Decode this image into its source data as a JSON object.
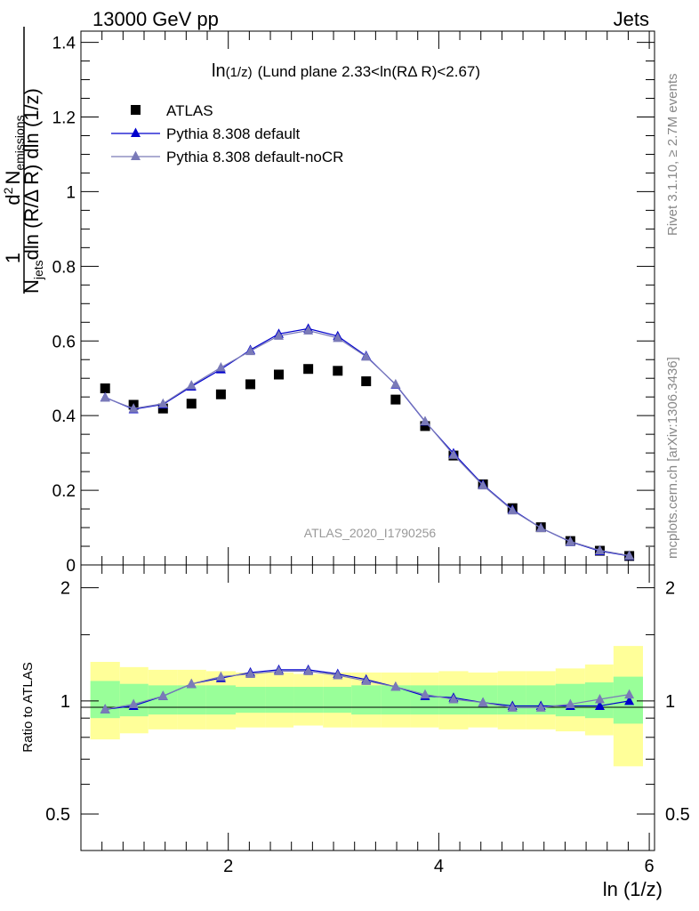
{
  "header": {
    "left": "13000 GeV pp",
    "right": "Jets"
  },
  "side_labels": {
    "rivet": "Rivet 3.1.10, ≥ 2.7M events",
    "mcplots": "mcplots.cern.ch [arXiv:1306.3436]"
  },
  "watermark": "ATLAS_2020_I1790256",
  "chart_data": [
    {
      "type": "scatter",
      "title_main": "ln",
      "title_sub": "(1/z)",
      "title_rest": "(Lund plane 2.33<ln(RΔ R)<2.67)",
      "xlabel": "ln (1/z)",
      "ylabel": {
        "numerator": "1",
        "denominator": "N",
        "denominator_sub": "jets",
        "d_label": "d",
        "d_sup": "2",
        "n_label": "N",
        "n_sub": "emissions",
        "tail": "dln (R/Δ R) dln (1/z)"
      },
      "xlim": [
        0.6,
        6.05
      ],
      "ylim": [
        0,
        1.43
      ],
      "y_ticks": [
        "0",
        "0.2",
        "0.4",
        "0.6",
        "0.8",
        "1",
        "1.2",
        "1.4"
      ],
      "x_ticks": [
        "2",
        "4",
        "6"
      ],
      "legend": [
        "ATLAS",
        "Pythia 8.308 default",
        "Pythia 8.308 default-noCR"
      ],
      "x": [
        0.83,
        1.1,
        1.38,
        1.65,
        1.93,
        2.21,
        2.48,
        2.76,
        3.04,
        3.31,
        3.59,
        3.87,
        4.14,
        4.42,
        4.7,
        4.97,
        5.25,
        5.53,
        5.81
      ],
      "series": [
        {
          "name": "ATLAS",
          "color": "#000000",
          "marker": "square",
          "values": [
            0.473,
            0.429,
            0.419,
            0.432,
            0.457,
            0.484,
            0.51,
            0.525,
            0.52,
            0.492,
            0.443,
            0.372,
            0.293,
            0.216,
            0.152,
            0.101,
            0.064,
            0.038,
            0.024
          ]
        },
        {
          "name": "Pythia 8.308 default",
          "color": "#0000cc",
          "marker": "triangle",
          "values": [
            0.449,
            0.417,
            0.43,
            0.478,
            0.524,
            0.576,
            0.619,
            0.633,
            0.613,
            0.56,
            0.483,
            0.384,
            0.299,
            0.215,
            0.148,
            0.099,
            0.062,
            0.037,
            0.024
          ]
        },
        {
          "name": "Pythia 8.308 default-noCR",
          "color": "#7a7ab8",
          "marker": "triangle",
          "values": [
            0.448,
            0.419,
            0.432,
            0.481,
            0.529,
            0.573,
            0.614,
            0.628,
            0.608,
            0.558,
            0.484,
            0.385,
            0.295,
            0.213,
            0.146,
            0.099,
            0.063,
            0.039,
            0.025
          ]
        }
      ]
    },
    {
      "type": "scatter",
      "ylabel": "Ratio to ATLAS",
      "ylim": [
        0.4,
        2.3
      ],
      "y_ticks": [
        "0.5",
        "1",
        "2"
      ],
      "yscale": "log",
      "bands": {
        "x_edges": [
          0.69,
          0.97,
          1.24,
          1.52,
          1.79,
          2.07,
          2.35,
          2.62,
          2.9,
          3.17,
          3.45,
          3.73,
          4.0,
          4.28,
          4.56,
          4.83,
          5.11,
          5.39,
          5.66,
          5.94
        ],
        "yellow_color": "#ffff99",
        "green_color": "#99ff99",
        "yellow_lo": [
          0.79,
          0.82,
          0.84,
          0.84,
          0.84,
          0.85,
          0.85,
          0.86,
          0.85,
          0.85,
          0.85,
          0.85,
          0.84,
          0.85,
          0.84,
          0.84,
          0.83,
          0.81,
          0.67
        ],
        "yellow_hi": [
          1.27,
          1.23,
          1.21,
          1.21,
          1.2,
          1.19,
          1.19,
          1.18,
          1.19,
          1.19,
          1.19,
          1.19,
          1.2,
          1.19,
          1.2,
          1.2,
          1.22,
          1.25,
          1.4
        ],
        "green_lo": [
          0.9,
          0.91,
          0.92,
          0.92,
          0.92,
          0.93,
          0.93,
          0.93,
          0.93,
          0.92,
          0.92,
          0.92,
          0.92,
          0.92,
          0.92,
          0.92,
          0.91,
          0.9,
          0.87
        ],
        "green_hi": [
          1.13,
          1.11,
          1.1,
          1.1,
          1.1,
          1.09,
          1.09,
          1.09,
          1.09,
          1.1,
          1.1,
          1.1,
          1.1,
          1.1,
          1.1,
          1.1,
          1.11,
          1.12,
          1.16
        ]
      },
      "series": [
        {
          "name": "Pythia 8.308 default",
          "color": "#0000cc",
          "values": [
            0.95,
            0.97,
            1.03,
            1.11,
            1.15,
            1.19,
            1.21,
            1.21,
            1.18,
            1.14,
            1.09,
            1.03,
            1.02,
            0.99,
            0.97,
            0.97,
            0.97,
            0.97,
            1.0
          ]
        },
        {
          "name": "Pythia 8.308 default-noCR",
          "color": "#7a7ab8",
          "values": [
            0.95,
            0.98,
            1.03,
            1.11,
            1.16,
            1.18,
            1.2,
            1.2,
            1.17,
            1.13,
            1.09,
            1.04,
            1.01,
            0.99,
            0.96,
            0.96,
            0.98,
            1.01,
            1.04
          ]
        }
      ]
    }
  ]
}
